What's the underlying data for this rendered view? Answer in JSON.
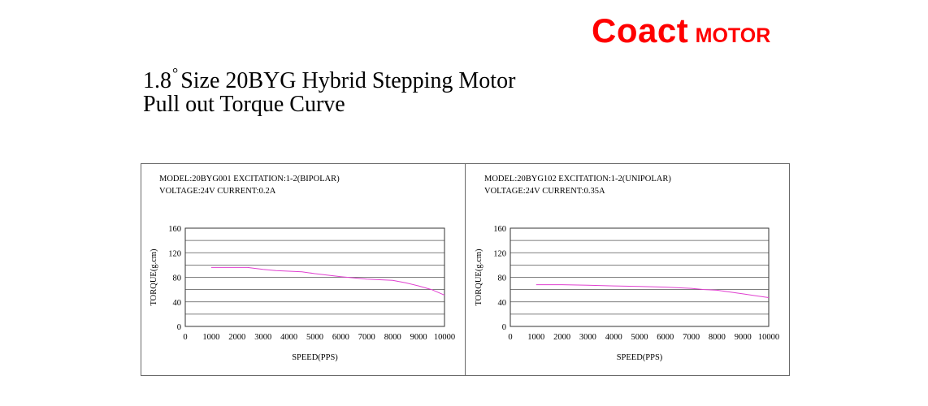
{
  "brand": {
    "name": "Coact",
    "suffix": "MOTOR",
    "color": "#ff0000"
  },
  "heading": {
    "line1_prefix": "1.8",
    "degree_symbol": "°",
    "line1_suffix": "Size 20BYG Hybrid Stepping Motor",
    "line2": "Pull out Torque Curve"
  },
  "chart_data": [
    {
      "type": "line",
      "spec_line1": "MODEL:20BYG001   EXCITATION:1-2(BIPOLAR)",
      "spec_line2": "VOLTAGE:24V       CURRENT:0.2A",
      "xlabel": "SPEED(PPS)",
      "ylabel": "TORQUE(g.cm)",
      "xlim": [
        0,
        10000
      ],
      "ylim": [
        0,
        160
      ],
      "xticks": [
        0,
        1000,
        2000,
        3000,
        4000,
        5000,
        6000,
        7000,
        8000,
        9000,
        10000
      ],
      "yticks": [
        0,
        40,
        80,
        120,
        160
      ],
      "grid_step": 20,
      "line_color": "#e040d0",
      "x": [
        1000,
        2000,
        2400,
        3000,
        3500,
        4500,
        5000,
        6000,
        6500,
        7000,
        8000,
        8500,
        9000,
        9500,
        10000
      ],
      "y": [
        96,
        96,
        96,
        93,
        91,
        89,
        86,
        81,
        79,
        77,
        75,
        71,
        66,
        60,
        51
      ]
    },
    {
      "type": "line",
      "spec_line1": "MODEL:20BYG102   EXCITATION:1-2(UNIPOLAR)",
      "spec_line2": "VOLTAGE:24V       CURRENT:0.35A",
      "xlabel": "SPEED(PPS)",
      "ylabel": "TORQUE(g.cm)",
      "xlim": [
        0,
        10000
      ],
      "ylim": [
        0,
        160
      ],
      "xticks": [
        0,
        1000,
        2000,
        3000,
        4000,
        5000,
        6000,
        7000,
        8000,
        9000,
        10000
      ],
      "yticks": [
        0,
        40,
        80,
        120,
        160
      ],
      "grid_step": 20,
      "line_color": "#e040d0",
      "x": [
        1000,
        2000,
        3000,
        4000,
        5000,
        6000,
        7000,
        7500,
        8000,
        8500,
        9000,
        9500,
        10000
      ],
      "y": [
        68,
        68,
        67,
        66,
        65,
        64,
        62,
        60,
        59,
        56,
        53,
        50,
        47
      ]
    }
  ]
}
